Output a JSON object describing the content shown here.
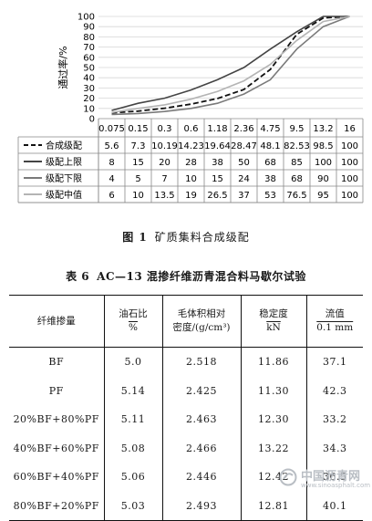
{
  "chart_data": {
    "type": "line",
    "ylabel": "通过率/%",
    "ylim": [
      0,
      100
    ],
    "yticks": [
      0,
      10,
      20,
      30,
      40,
      50,
      60,
      70,
      80,
      90,
      100
    ],
    "categories": [
      "0.075",
      "0.15",
      "0.3",
      "0.6",
      "1.18",
      "2.36",
      "4.75",
      "9.5",
      "13.2",
      "16"
    ],
    "series": [
      {
        "name": "合成级配",
        "values": [
          "5.6",
          "7.3",
          "10.19",
          "14.23",
          "19.64",
          "28.47",
          "48.1",
          "82.53",
          "98.5",
          "100"
        ],
        "color": "#111111",
        "dash": "dashed"
      },
      {
        "name": "级配上限",
        "values": [
          "8",
          "15",
          "20",
          "28",
          "38",
          "50",
          "68",
          "85",
          "100",
          "100"
        ],
        "color": "#444444",
        "dash": "solid"
      },
      {
        "name": "级配下限",
        "values": [
          "4",
          "5",
          "7",
          "10",
          "15",
          "24",
          "38",
          "68",
          "90",
          "100"
        ],
        "color": "#7a7a7a",
        "dash": "solid"
      },
      {
        "name": "级配中值",
        "values": [
          "6",
          "10",
          "13.5",
          "19",
          "26.5",
          "37",
          "53",
          "76.5",
          "95",
          "100"
        ],
        "color": "#b4b4b4",
        "dash": "solid"
      }
    ]
  },
  "figure": {
    "number": "图 1",
    "caption": "矿质集料合成级配"
  },
  "table": {
    "number": "表 6",
    "caption": "AC—13 混掺纤维沥青混合料马歇尔试验",
    "headers": [
      {
        "line1": "纤维掺量",
        "line2": ""
      },
      {
        "line1": "油石比",
        "line2": "%"
      },
      {
        "line1": "毛体积相对",
        "line2": "密度/(g/cm³)"
      },
      {
        "line1": "稳定度",
        "line2": "kN"
      },
      {
        "line1": "流值",
        "line2": "0.1 mm"
      }
    ],
    "rows": [
      [
        "BF",
        "5.0",
        "2.518",
        "11.86",
        "37.1"
      ],
      [
        "PF",
        "5.14",
        "2.425",
        "11.30",
        "42.3"
      ],
      [
        "20%BF+80%PF",
        "5.11",
        "2.463",
        "12.30",
        "33.2"
      ],
      [
        "40%BF+60%PF",
        "5.08",
        "2.466",
        "13.22",
        "34.3"
      ],
      [
        "60%BF+40%PF",
        "5.06",
        "2.446",
        "12.42",
        "36.5"
      ],
      [
        "80%BF+20%PF",
        "5.03",
        "2.493",
        "12.81",
        "40.1"
      ]
    ]
  },
  "watermark": {
    "name": "中国沥青网",
    "url": "www.sinoasphalt.com"
  }
}
